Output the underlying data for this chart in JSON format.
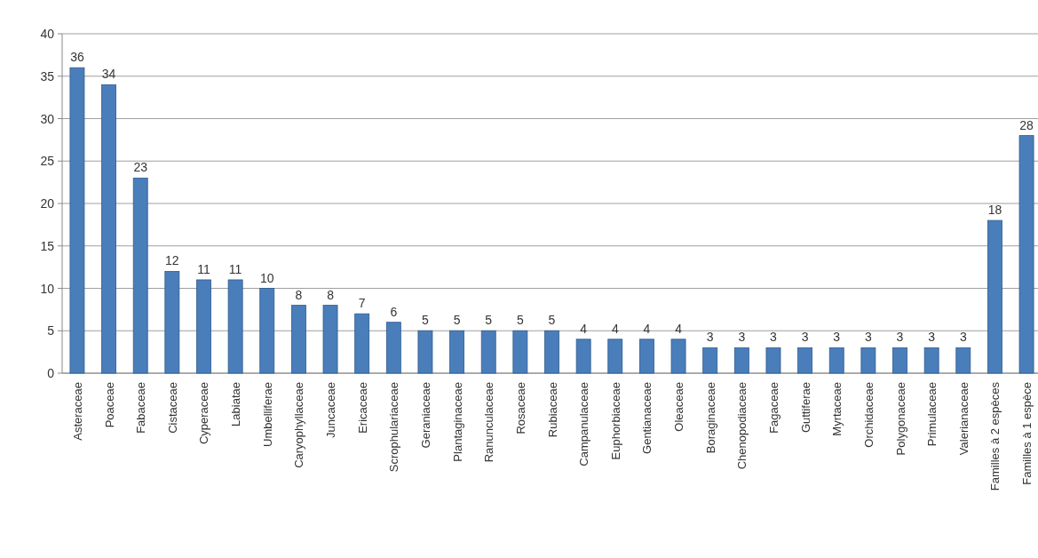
{
  "chart_data": {
    "type": "bar",
    "categories": [
      "Asteraceae",
      "Poaceae",
      "Fabaceae",
      "Cistaceae",
      "Cyperaceae",
      "Labiatae",
      "Umbelliferae",
      "Caryophyllaceae",
      "Juncaceae",
      "Ericaceae",
      "Scrophulariaceae",
      "Geraniaceae",
      "Plantaginaceae",
      "Ranunculaceae",
      "Rosaceae",
      "Rubiaceae",
      "Campanulaceae",
      "Euphorbiaceae",
      "Gentianaceae",
      "Oleaceae",
      "Boraginaceae",
      "Chenopodiaceae",
      "Fagaceae",
      "Guttiferae",
      "Myrtaceae",
      "Orchidaceae",
      "Polygonaceae",
      "Primulaceae",
      "Valerianaceae",
      "Familles à 2 espèces",
      "Familles à 1 espèce"
    ],
    "values": [
      36,
      34,
      23,
      12,
      11,
      11,
      10,
      8,
      8,
      7,
      6,
      5,
      5,
      5,
      5,
      5,
      4,
      4,
      4,
      4,
      3,
      3,
      3,
      3,
      3,
      3,
      3,
      3,
      3,
      18,
      28
    ],
    "color": "#4a7ebb",
    "ylim": [
      0,
      40
    ],
    "yticks": [
      0,
      5,
      10,
      15,
      20,
      25,
      30,
      35,
      40
    ],
    "grid": "y",
    "data_labels": true
  }
}
